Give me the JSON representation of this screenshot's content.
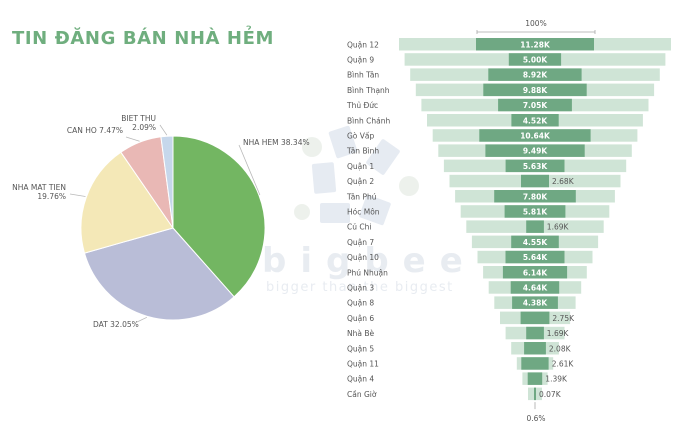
{
  "page": {
    "title": "TIN ĐĂNG BÁN NHÀ HẺM"
  },
  "watermark": {
    "brand": "bigbee",
    "tagline": "bigger than the biggest"
  },
  "colors": {
    "title": "#6fae7e",
    "funnel_bar": "#6fa883",
    "funnel_background": "#cfe4d6",
    "pie_nha_hem": "#73b662",
    "pie_dat": "#b9bdd7",
    "pie_nha_mat_tien": "#f4e8b7",
    "pie_can_ho": "#e9b8b5",
    "pie_biet_thu": "#c6d7eb"
  },
  "chart_data": [
    {
      "type": "pie",
      "title": "",
      "slices": [
        {
          "label": "NHA HEM",
          "value": 38.34,
          "value_label": "38.34%",
          "color": "#73b662"
        },
        {
          "label": "DAT",
          "value": 32.05,
          "value_label": "32.05%",
          "color": "#b9bdd7"
        },
        {
          "label": "NHA MAT TIEN",
          "value": 19.76,
          "value_label": "19.76%",
          "color": "#f4e8b7"
        },
        {
          "label": "CAN HO",
          "value": 7.47,
          "value_label": "7.47%",
          "color": "#e9b8b5"
        },
        {
          "label": "BIET THU",
          "value": 2.09,
          "value_label": "2.09%",
          "color": "#c6d7eb"
        }
      ]
    },
    {
      "type": "bar",
      "subtype": "funnel",
      "title": "",
      "top_label": "100%",
      "bottom_label": "0.6%",
      "categories": [
        "Quận 12",
        "Quận 9",
        "Bình Tân",
        "Bình Thạnh",
        "Thủ Đức",
        "Bình Chánh",
        "Gò Vấp",
        "Tân Bình",
        "Quận 1",
        "Quận 2",
        "Tân Phú",
        "Hóc Môn",
        "Củ Chi",
        "Quận 7",
        "Quận 10",
        "Phú Nhuận",
        "Quận 3",
        "Quận 8",
        "Quận 6",
        "Nhà Bè",
        "Quận 5",
        "Quận 11",
        "Quận 4",
        "Cần Giờ"
      ],
      "values": [
        11.28,
        5.0,
        8.92,
        9.88,
        7.05,
        4.52,
        10.64,
        9.49,
        5.63,
        2.68,
        7.8,
        5.81,
        1.69,
        4.55,
        5.64,
        6.14,
        4.64,
        4.38,
        2.75,
        1.69,
        2.08,
        2.61,
        1.39,
        0.07
      ],
      "value_labels": [
        "11.28K",
        "5.00K",
        "8.92K",
        "9.88K",
        "7.05K",
        "4.52K",
        "10.64K",
        "9.49K",
        "5.63K",
        "2.68K",
        "7.80K",
        "5.81K",
        "1.69K",
        "4.55K",
        "5.64K",
        "6.14K",
        "4.64K",
        "4.38K",
        "2.75K",
        "1.69K",
        "2.08K",
        "2.61K",
        "1.39K",
        "0.07K"
      ],
      "unit": "K"
    }
  ]
}
